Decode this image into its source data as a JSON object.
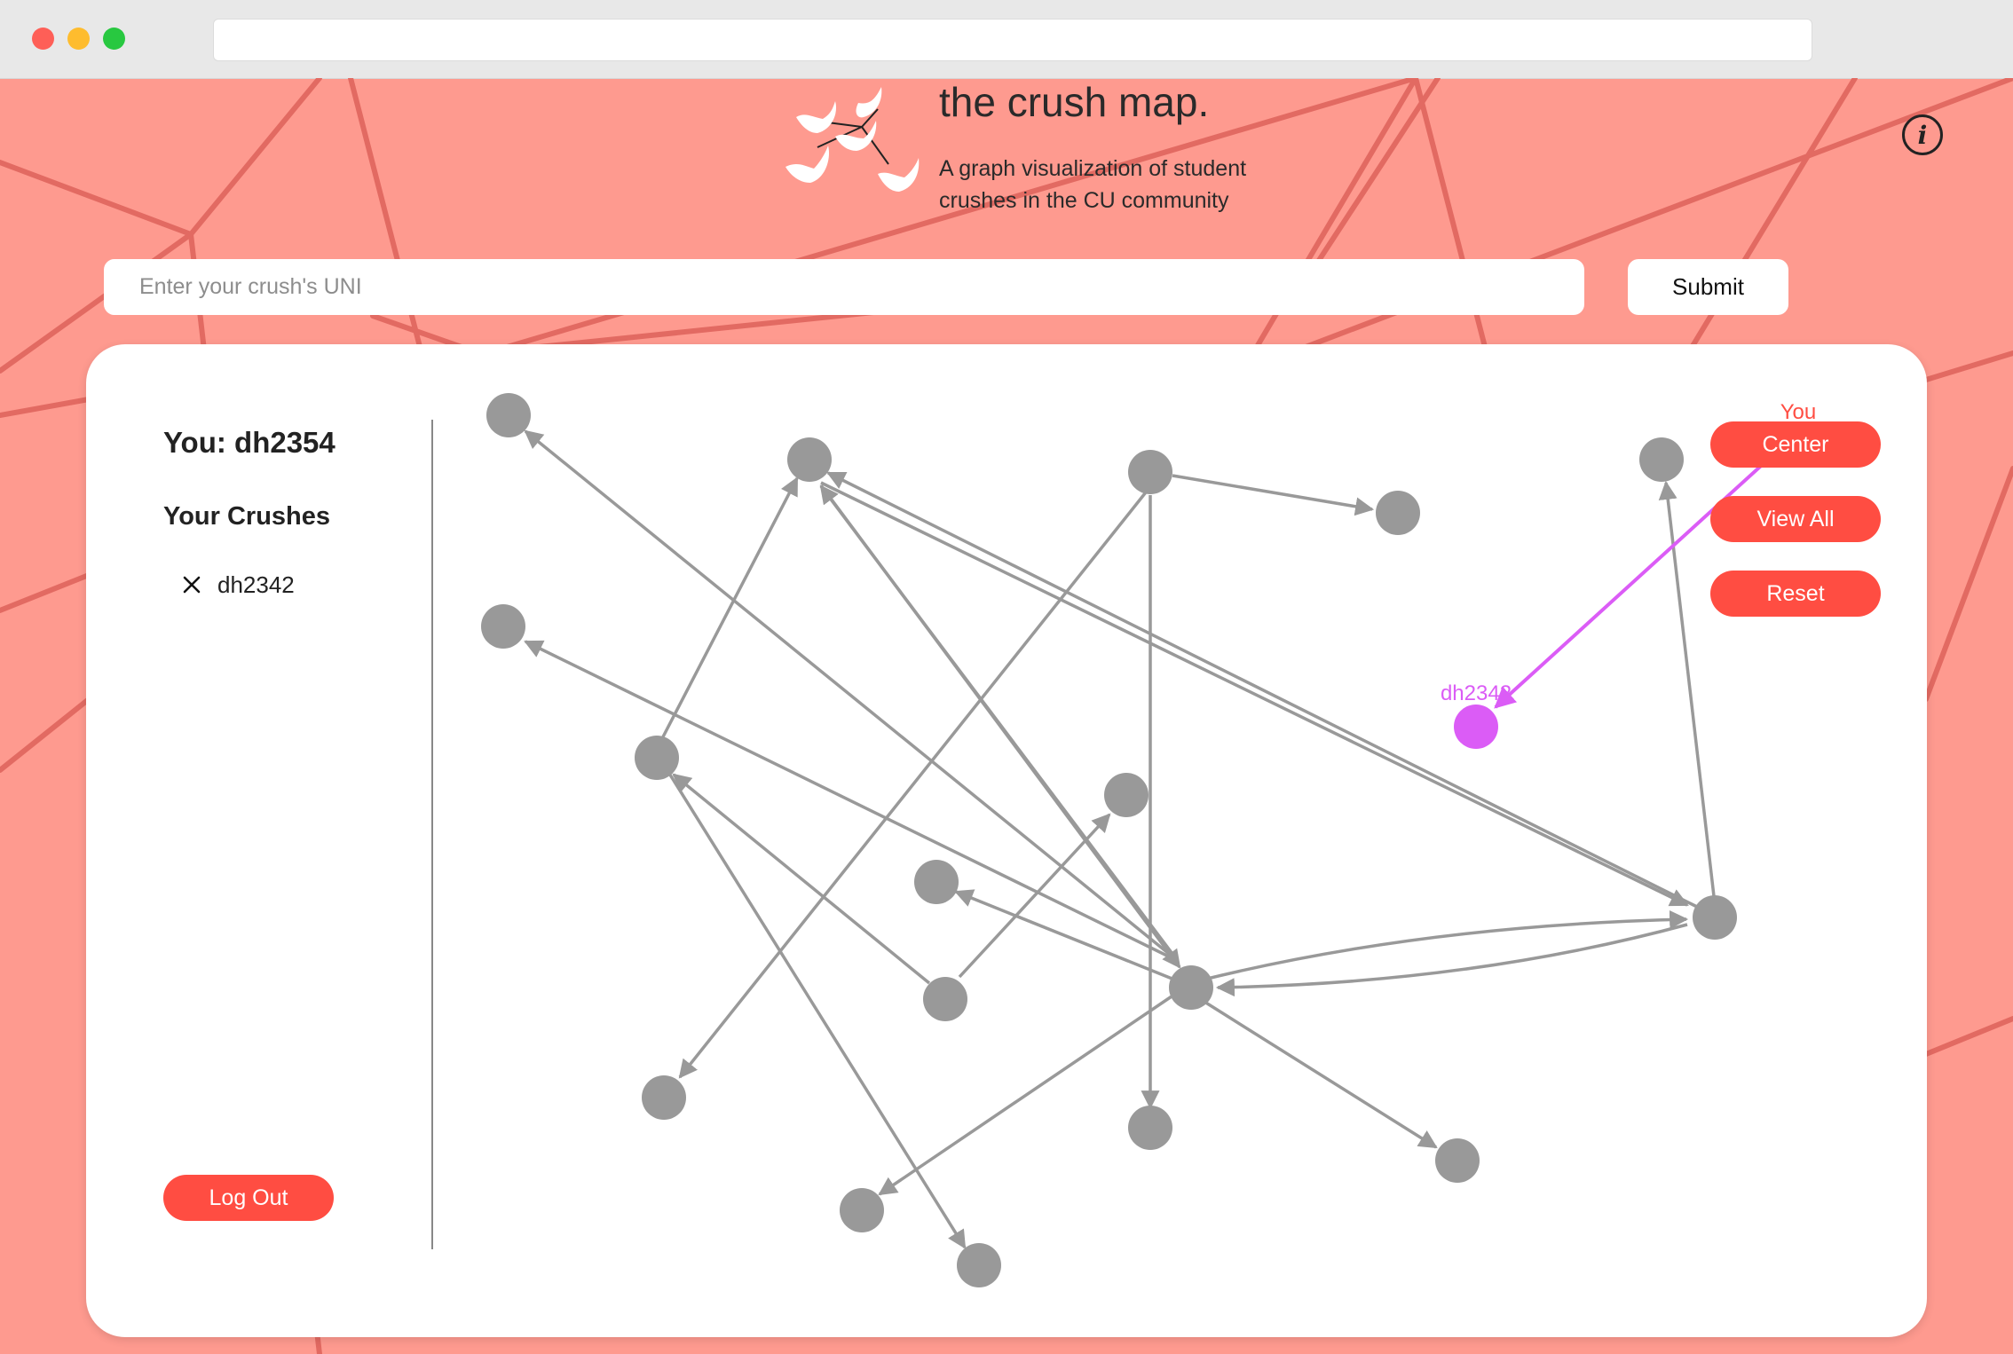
{
  "header": {
    "title": "the crush map.",
    "subtitle": "A graph visualization of student crushes in the CU community"
  },
  "search": {
    "placeholder": "Enter your crush's UNI",
    "value": "",
    "submit_label": "Submit"
  },
  "sidebar": {
    "you_label": "You: dh2354",
    "crushes_heading": "Your Crushes",
    "crushes": [
      {
        "uni": "dh2342"
      }
    ],
    "logout_label": "Log Out"
  },
  "graph": {
    "controls": {
      "center": "Center",
      "view_all": "View All",
      "reset": "Reset"
    },
    "you_label": "You",
    "crush_label": "dh2342",
    "colors": {
      "node": "#999999",
      "edge": "#999999",
      "highlight": "#db5cf6",
      "you": "#ff4d42",
      "accent": "#ff4d42",
      "background": "#fe9a8f"
    }
  }
}
